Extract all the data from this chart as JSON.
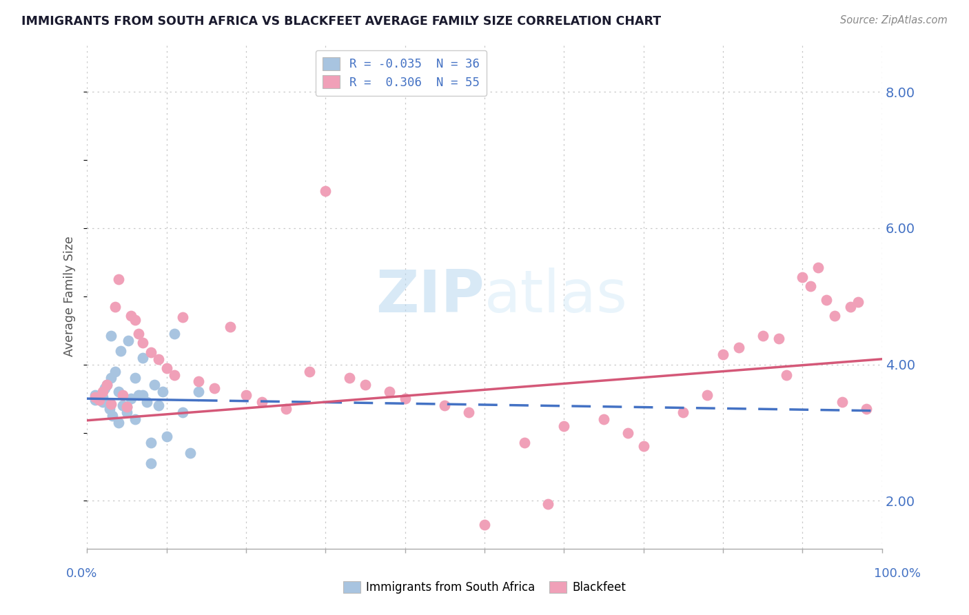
{
  "title": "IMMIGRANTS FROM SOUTH AFRICA VS BLACKFEET AVERAGE FAMILY SIZE CORRELATION CHART",
  "source": "Source: ZipAtlas.com",
  "ylabel": "Average Family Size",
  "legend_blue_r": "-0.035",
  "legend_blue_n": "36",
  "legend_pink_r": "0.306",
  "legend_pink_n": "55",
  "blue_color": "#a8c4e0",
  "pink_color": "#f0a0b8",
  "blue_line_color": "#4472c4",
  "pink_line_color": "#d45878",
  "grid_color": "#c8c8c8",
  "right_tick_color": "#4472c4",
  "title_color": "#1a1a2e",
  "source_color": "#888888",
  "watermark_color": "#ddeeff",
  "ylim_min": 1.3,
  "ylim_max": 8.7,
  "yticks": [
    2.0,
    4.0,
    6.0,
    8.0
  ],
  "blue_x": [
    1.0,
    1.5,
    2.0,
    2.2,
    2.5,
    2.8,
    3.0,
    3.2,
    3.5,
    4.0,
    4.2,
    4.5,
    5.0,
    5.2,
    5.5,
    6.0,
    6.5,
    7.0,
    7.5,
    8.0,
    8.5,
    9.0,
    9.5,
    10.0,
    11.0,
    12.0,
    13.0,
    14.0,
    1.0,
    2.0,
    3.0,
    4.0,
    5.0,
    6.0,
    7.0,
    8.0
  ],
  "blue_y": [
    3.55,
    3.5,
    3.45,
    3.65,
    3.7,
    3.35,
    3.8,
    3.25,
    3.9,
    3.6,
    4.2,
    3.4,
    3.3,
    4.35,
    3.5,
    3.2,
    3.55,
    4.1,
    3.45,
    2.85,
    3.7,
    3.4,
    3.6,
    2.95,
    4.45,
    3.3,
    2.7,
    3.6,
    3.48,
    3.52,
    4.42,
    3.15,
    3.38,
    3.8,
    3.55,
    2.55
  ],
  "pink_x": [
    1.0,
    1.5,
    2.0,
    2.5,
    3.0,
    3.5,
    4.0,
    4.5,
    5.0,
    5.5,
    6.0,
    6.5,
    7.0,
    8.0,
    9.0,
    10.0,
    11.0,
    12.0,
    14.0,
    16.0,
    18.0,
    20.0,
    22.0,
    25.0,
    28.0,
    30.0,
    33.0,
    35.0,
    38.0,
    40.0,
    45.0,
    48.0,
    50.0,
    55.0,
    58.0,
    60.0,
    65.0,
    68.0,
    70.0,
    75.0,
    78.0,
    80.0,
    82.0,
    85.0,
    87.0,
    88.0,
    90.0,
    91.0,
    92.0,
    93.0,
    94.0,
    95.0,
    96.0,
    97.0,
    98.0
  ],
  "pink_y": [
    3.52,
    3.48,
    3.6,
    3.7,
    3.42,
    4.85,
    5.25,
    3.55,
    3.38,
    4.72,
    4.65,
    4.45,
    4.32,
    4.18,
    4.08,
    3.95,
    3.85,
    4.7,
    3.75,
    3.65,
    4.55,
    3.55,
    3.45,
    3.35,
    3.9,
    6.55,
    3.8,
    3.7,
    3.6,
    3.5,
    3.4,
    3.3,
    1.65,
    2.85,
    1.95,
    3.1,
    3.2,
    3.0,
    2.8,
    3.3,
    3.55,
    4.15,
    4.25,
    4.42,
    4.38,
    3.85,
    5.28,
    5.15,
    5.42,
    4.95,
    4.72,
    3.45,
    4.85,
    4.92,
    3.35
  ]
}
